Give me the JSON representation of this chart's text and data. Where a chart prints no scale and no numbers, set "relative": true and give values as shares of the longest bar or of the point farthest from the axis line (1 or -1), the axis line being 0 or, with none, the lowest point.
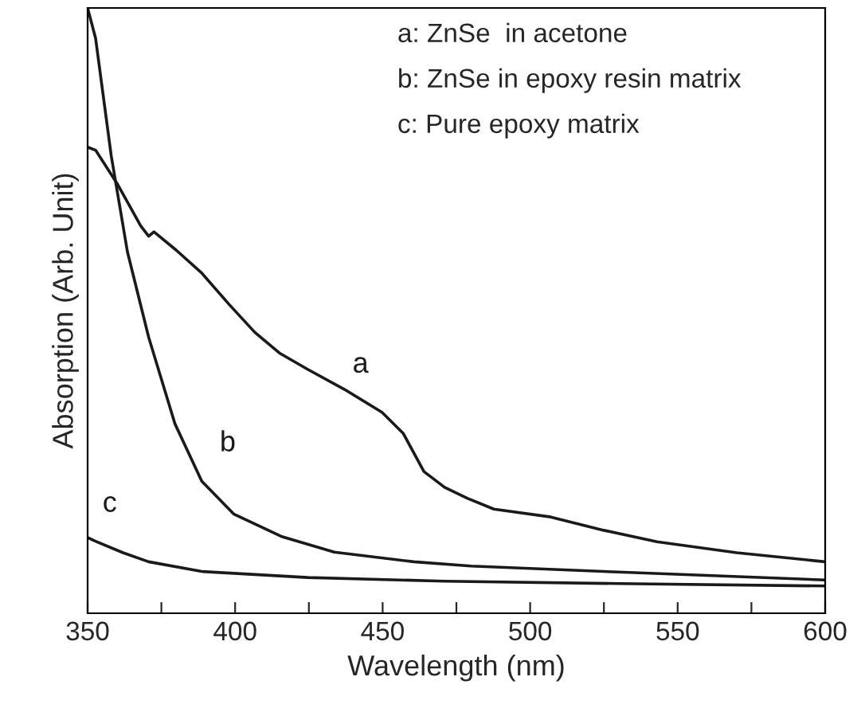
{
  "chart_data": {
    "type": "line",
    "relative": true,
    "xlabel": "Wavelength (nm)",
    "ylabel": "Absorption (Arb. Unit)",
    "xlim": [
      350,
      600
    ],
    "xticks": [
      350,
      {
        "value": 375,
        "label": null
      },
      400,
      {
        "value": 425,
        "label": null
      },
      450,
      {
        "value": 475,
        "label": null
      },
      500,
      {
        "value": 525,
        "label": null
      },
      550,
      {
        "value": 575,
        "label": null
      },
      600
    ],
    "tick_labels": "x",
    "grid": false,
    "legend": false,
    "marker": "none",
    "line_style": "solid",
    "series": [
      {
        "name": "a",
        "color": "#1a1a1a",
        "x": [
          350,
          352.7,
          360,
          368,
          370.7,
          372.5,
          380,
          388.7,
          398,
          406.7,
          415,
          424.6,
          437,
          449.8,
          457,
          464,
          471,
          478.7,
          487.7,
          507,
          525,
          543,
          570,
          600
        ],
        "values": [
          0.77,
          0.765,
          0.71,
          0.64,
          0.623,
          0.63,
          0.6,
          0.562,
          0.51,
          0.464,
          0.43,
          0.403,
          0.37,
          0.332,
          0.297,
          0.234,
          0.208,
          0.19,
          0.172,
          0.159,
          0.137,
          0.118,
          0.1,
          0.085
        ]
      },
      {
        "name": "b",
        "color": "#1a1a1a",
        "x": [
          350,
          352.7,
          358,
          363.5,
          370.7,
          379.6,
          388.7,
          399.5,
          415.6,
          433.6,
          460.6,
          480,
          530,
          600
        ],
        "values": [
          1.0,
          0.95,
          0.756,
          0.597,
          0.456,
          0.313,
          0.218,
          0.164,
          0.127,
          0.101,
          0.085,
          0.078,
          0.068,
          0.055
        ]
      },
      {
        "name": "c",
        "color": "#1a1a1a",
        "x": [
          350,
          352.7,
          362,
          370.7,
          388.7,
          424.6,
          471,
          530,
          600
        ],
        "values": [
          0.125,
          0.119,
          0.1,
          0.085,
          0.069,
          0.059,
          0.053,
          0.049,
          0.045
        ]
      }
    ],
    "annotations": [
      "a: ZnSe  in acetone",
      "b: ZnSe in epoxy resin matrix",
      "c: Pure epoxy matrix"
    ]
  }
}
